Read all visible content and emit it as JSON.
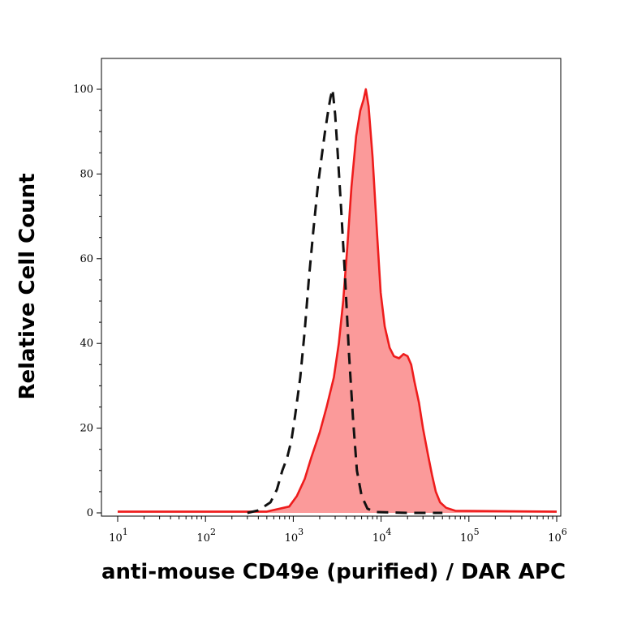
{
  "chart_data": {
    "type": "area",
    "xlabel": "anti-mouse CD49e (purified) / DAR APC",
    "ylabel": "Relative Cell Count",
    "x_scale": "log",
    "xlim": [
      10,
      1000000
    ],
    "ylim": [
      0,
      100
    ],
    "x_ticks": [
      {
        "base": "10",
        "exp": "1",
        "value": 10
      },
      {
        "base": "10",
        "exp": "2",
        "value": 100
      },
      {
        "base": "10",
        "exp": "3",
        "value": 1000
      },
      {
        "base": "10",
        "exp": "4",
        "value": 10000
      },
      {
        "base": "10",
        "exp": "5",
        "value": 100000
      },
      {
        "base": "10",
        "exp": "6",
        "value": 1000000
      }
    ],
    "y_ticks": [
      "0",
      "20",
      "40",
      "60",
      "80",
      "100"
    ],
    "y_tick_values": [
      0,
      20,
      40,
      60,
      80,
      100
    ],
    "grid": false,
    "series": [
      {
        "style": "filled-solid",
        "stroke": "#ee1c1c",
        "fill": "#fb9a9a",
        "points": [
          [
            10,
            0.3
          ],
          [
            500,
            0.3
          ],
          [
            900,
            1.5
          ],
          [
            1100,
            4
          ],
          [
            1350,
            8
          ],
          [
            1600,
            13
          ],
          [
            2000,
            19
          ],
          [
            2400,
            25
          ],
          [
            2900,
            32
          ],
          [
            3300,
            40
          ],
          [
            3700,
            50
          ],
          [
            4100,
            62
          ],
          [
            4600,
            77
          ],
          [
            5200,
            89
          ],
          [
            5800,
            95
          ],
          [
            6300,
            97.5
          ],
          [
            6700,
            100
          ],
          [
            7200,
            96
          ],
          [
            8000,
            84
          ],
          [
            9000,
            66
          ],
          [
            9900,
            52
          ],
          [
            11000,
            44
          ],
          [
            12500,
            39
          ],
          [
            14000,
            37
          ],
          [
            16000,
            36.5
          ],
          [
            18000,
            37.5
          ],
          [
            20000,
            37
          ],
          [
            22000,
            35
          ],
          [
            24000,
            31
          ],
          [
            27000,
            26
          ],
          [
            30000,
            20
          ],
          [
            34000,
            14
          ],
          [
            38000,
            9
          ],
          [
            42000,
            5
          ],
          [
            47000,
            2.5
          ],
          [
            55000,
            1.2
          ],
          [
            70000,
            0.5
          ],
          [
            1000000,
            0.3
          ]
        ]
      },
      {
        "style": "dashed",
        "stroke": "#111111",
        "points": [
          [
            300,
            0
          ],
          [
            400,
            0.6
          ],
          [
            550,
            2.5
          ],
          [
            650,
            5.5
          ],
          [
            750,
            10
          ],
          [
            850,
            13
          ],
          [
            950,
            17
          ],
          [
            1050,
            23
          ],
          [
            1200,
            32
          ],
          [
            1350,
            43
          ],
          [
            1500,
            55
          ],
          [
            1700,
            67
          ],
          [
            1900,
            77
          ],
          [
            2100,
            84
          ],
          [
            2300,
            90
          ],
          [
            2500,
            95
          ],
          [
            2650,
            98
          ],
          [
            2800,
            100
          ],
          [
            3000,
            94
          ],
          [
            3200,
            85
          ],
          [
            3500,
            72
          ],
          [
            3900,
            55
          ],
          [
            4300,
            38
          ],
          [
            4800,
            22
          ],
          [
            5300,
            10
          ],
          [
            6000,
            4
          ],
          [
            7000,
            1
          ],
          [
            8500,
            0.2
          ],
          [
            20000,
            0
          ],
          [
            50000,
            0
          ]
        ]
      }
    ]
  }
}
